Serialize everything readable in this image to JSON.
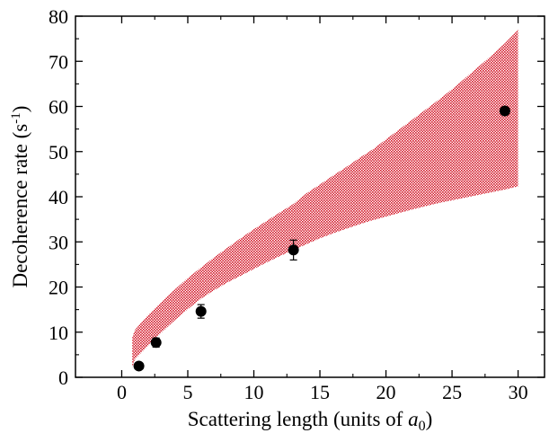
{
  "chart_data": {
    "type": "scatter",
    "xlabel": "Scattering length (units of a0)",
    "xlabel_parts": {
      "main": "Scattering length (units of ",
      "var": "a",
      "sub": "0",
      "close": ")"
    },
    "ylabel": "Decoherence rate (s-1)",
    "ylabel_parts": {
      "main": "Decoherence rate (s",
      "sup": "-1",
      "close": ")"
    },
    "xlim": [
      -3.5,
      32
    ],
    "ylim": [
      0,
      80
    ],
    "xticks": [
      0,
      5,
      10,
      15,
      20,
      25,
      30
    ],
    "yticks": [
      0,
      10,
      20,
      30,
      40,
      50,
      60,
      70,
      80
    ],
    "grid": false,
    "series": [
      {
        "type": "scatter_with_error",
        "x": [
          1.3,
          2.6,
          6.0,
          13.0,
          29.0
        ],
        "y": [
          2.5,
          7.7,
          14.6,
          28.2,
          59.0
        ],
        "yerr": [
          0.6,
          1.0,
          1.5,
          2.2,
          0.8
        ],
        "color": "#000000"
      },
      {
        "type": "band",
        "x": [
          0.8,
          1,
          2,
          3,
          4,
          5,
          6,
          7,
          8,
          9,
          10,
          11,
          12,
          13,
          14,
          15,
          16,
          17,
          18,
          19,
          20,
          21,
          22,
          23,
          24,
          25,
          26,
          27,
          28,
          29,
          30
        ],
        "upper": [
          8.8,
          10.5,
          13.8,
          16.7,
          19.4,
          22.0,
          24.3,
          26.6,
          28.7,
          30.8,
          32.8,
          34.7,
          36.6,
          38.4,
          40.8,
          42.7,
          44.7,
          46.6,
          48.6,
          50.5,
          52.7,
          54.9,
          57.1,
          59.3,
          61.5,
          63.8,
          66.3,
          68.8,
          71.3,
          74.0,
          77.0
        ],
        "lower": [
          2.2,
          4.0,
          7.0,
          9.9,
          12.6,
          15.1,
          17.4,
          19.3,
          21.0,
          22.5,
          24.0,
          25.5,
          26.9,
          28.2,
          29.5,
          30.8,
          31.9,
          32.9,
          33.9,
          34.8,
          35.6,
          36.4,
          37.2,
          37.9,
          38.6,
          39.2,
          39.8,
          40.4,
          41.0,
          41.6,
          42.3
        ],
        "color": "#d41c2c"
      }
    ]
  }
}
